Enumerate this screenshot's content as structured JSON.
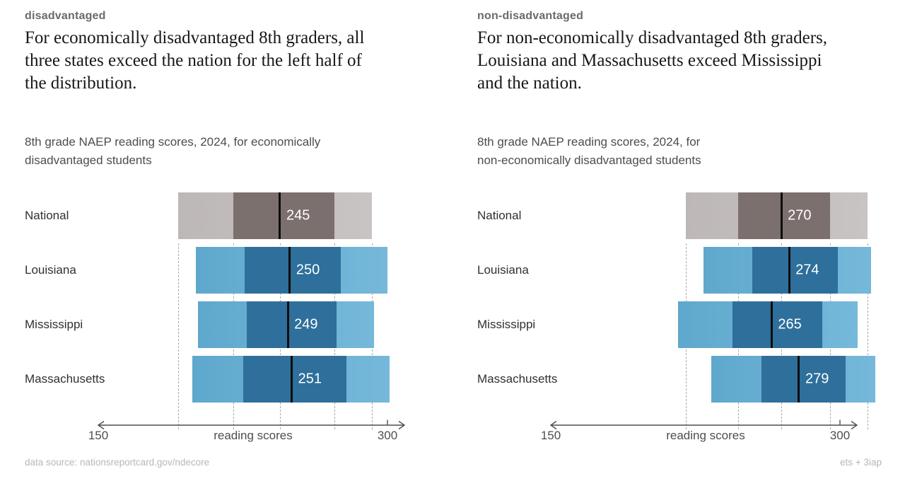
{
  "page": {
    "footer_left": "data source: nationsreportcard.gov/ndecore",
    "footer_right": "ets + 3iap"
  },
  "colors": {
    "nation_light_left": "#bdb7b7",
    "nation_light_right": "#c9c4c4",
    "nation_dark": "#7c706e",
    "state_light_left": "#5fa8cd",
    "state_light_right": "#75b8da",
    "state_dark": "#2e6f9b",
    "median_line": "#0d0d0d",
    "value_text": "#ffffff",
    "reference_line": "#a9a9a9"
  },
  "panels": [
    {
      "kicker": "disadvantaged",
      "headline_lines": [
        "For economically disadvantaged 8th graders, all",
        "three states exceed the nation for the left half of",
        "the distribution."
      ],
      "subtitle_lines": [
        "8th grade NAEP reading scores, 2024, for economically",
        "disadvantaged students"
      ]
    },
    {
      "kicker": "non-disadvantaged",
      "headline_lines": [
        "For non-economically disadvantaged 8th graders,",
        "Louisiana and Massachusetts exceed Mississippi",
        "and the nation."
      ],
      "subtitle_lines": [
        "8th grade NAEP reading scores, 2024, for",
        "non-economically disadvantaged students"
      ]
    }
  ],
  "chart_data": [
    {
      "type": "bar",
      "variant": "percentile-range-bars",
      "title": "8th grade NAEP reading scores, 2024, for economically disadvantaged students",
      "xlabel": "reading scores",
      "x_ticks": [
        150,
        300
      ],
      "xlim": [
        150,
        312
      ],
      "percentiles": [
        "p10",
        "p25",
        "median",
        "p75",
        "p90"
      ],
      "categories": [
        "National",
        "Louisiana",
        "Mississippi",
        "Massachusetts"
      ],
      "series": [
        {
          "name": "National",
          "group": "nation",
          "values": [
            193,
            221,
            245,
            273,
            292
          ],
          "median": 245
        },
        {
          "name": "Louisiana",
          "group": "state",
          "values": [
            202,
            227,
            250,
            276,
            300
          ],
          "median": 250
        },
        {
          "name": "Mississippi",
          "group": "state",
          "values": [
            203,
            228,
            249,
            274,
            293
          ],
          "median": 249
        },
        {
          "name": "Massachusetts",
          "group": "state",
          "values": [
            200,
            226,
            251,
            279,
            301
          ],
          "median": 251
        }
      ],
      "legend_note": "dashed reference lines mark National percentile boundaries"
    },
    {
      "type": "bar",
      "variant": "percentile-range-bars",
      "title": "8th grade NAEP reading scores, 2024, for non-economically disadvantaged students",
      "xlabel": "reading scores",
      "x_ticks": [
        150,
        300
      ],
      "xlim": [
        150,
        322
      ],
      "percentiles": [
        "p10",
        "p25",
        "median",
        "p75",
        "p90"
      ],
      "categories": [
        "National",
        "Louisiana",
        "Mississippi",
        "Massachusetts"
      ],
      "series": [
        {
          "name": "National",
          "group": "nation",
          "values": [
            221,
            248,
            270,
            295,
            314
          ],
          "median": 270
        },
        {
          "name": "Louisiana",
          "group": "state",
          "values": [
            230,
            255,
            274,
            299,
            316
          ],
          "median": 274
        },
        {
          "name": "Mississippi",
          "group": "state",
          "values": [
            217,
            245,
            265,
            291,
            309
          ],
          "median": 265
        },
        {
          "name": "Massachusetts",
          "group": "state",
          "values": [
            234,
            260,
            279,
            303,
            318
          ],
          "median": 279
        }
      ],
      "legend_note": "dashed reference lines mark National percentile boundaries"
    }
  ]
}
